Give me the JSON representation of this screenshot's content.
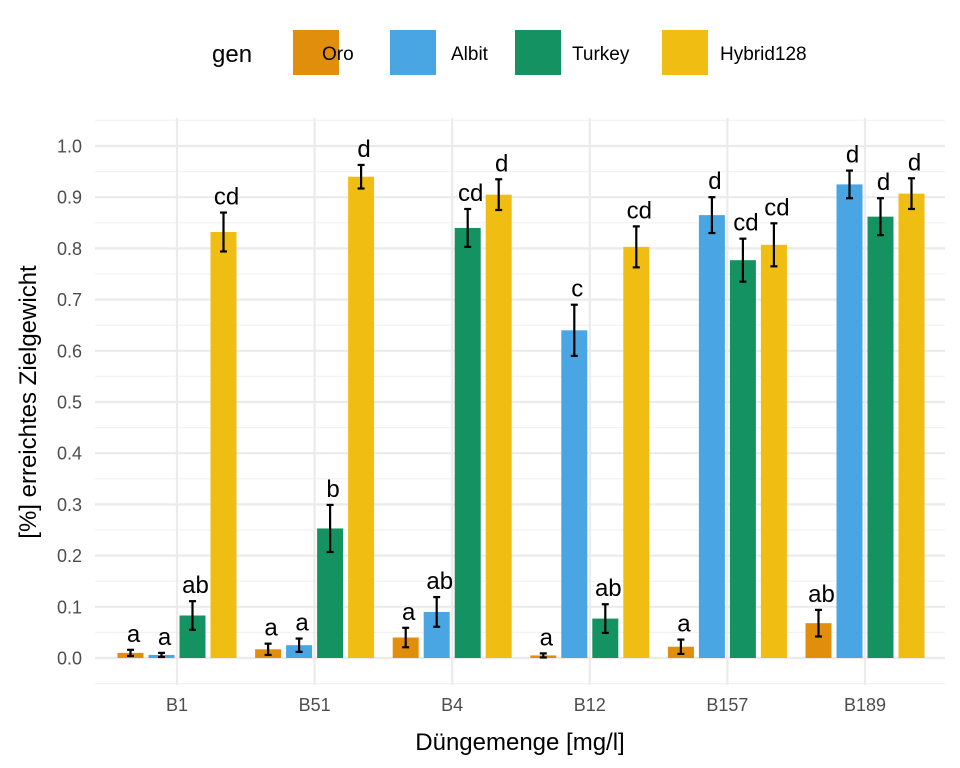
{
  "chart_data": {
    "type": "bar",
    "xlabel": "Düngemenge [mg/l]",
    "ylabel": "[%] erreichtes Zielgewicht",
    "ylim": [
      -0.05,
      1.08
    ],
    "yticks": [
      "0.0",
      "0.1",
      "0.2",
      "0.3",
      "0.4",
      "0.5",
      "0.6",
      "0.7",
      "0.8",
      "0.9",
      "1.0"
    ],
    "grid": true,
    "legend": {
      "title": "gen",
      "position": "top"
    },
    "categories": [
      "B1",
      "B51",
      "B4",
      "B12",
      "B157",
      "B189"
    ],
    "series": [
      {
        "name": "Oro",
        "color": "#E08E0B",
        "values": [
          0.01,
          0.017,
          0.04,
          0.005,
          0.022,
          0.068
        ],
        "errors": [
          0.006,
          0.011,
          0.019,
          0.004,
          0.014,
          0.026
        ],
        "labels": [
          "a",
          "a",
          "a",
          "a",
          "a",
          "ab"
        ]
      },
      {
        "name": "Albit",
        "color": "#4AA6E3",
        "values": [
          0.006,
          0.025,
          0.09,
          0.64,
          0.865,
          0.925
        ],
        "errors": [
          0.004,
          0.013,
          0.029,
          0.05,
          0.035,
          0.027
        ],
        "labels": [
          "a",
          "a",
          "ab",
          "c",
          "d",
          "d"
        ]
      },
      {
        "name": "Turkey",
        "color": "#159262",
        "values": [
          0.083,
          0.253,
          0.84,
          0.077,
          0.777,
          0.862
        ],
        "errors": [
          0.028,
          0.046,
          0.037,
          0.028,
          0.042,
          0.036
        ],
        "labels": [
          "ab",
          "b",
          "cd",
          "ab",
          "cd",
          "d"
        ]
      },
      {
        "name": "Hybrid128",
        "color": "#F0BD12",
        "values": [
          0.832,
          0.94,
          0.905,
          0.803,
          0.807,
          0.907
        ],
        "errors": [
          0.038,
          0.023,
          0.03,
          0.04,
          0.042,
          0.03
        ],
        "labels": [
          "cd",
          "d",
          "d",
          "cd",
          "cd",
          "d"
        ]
      }
    ]
  }
}
